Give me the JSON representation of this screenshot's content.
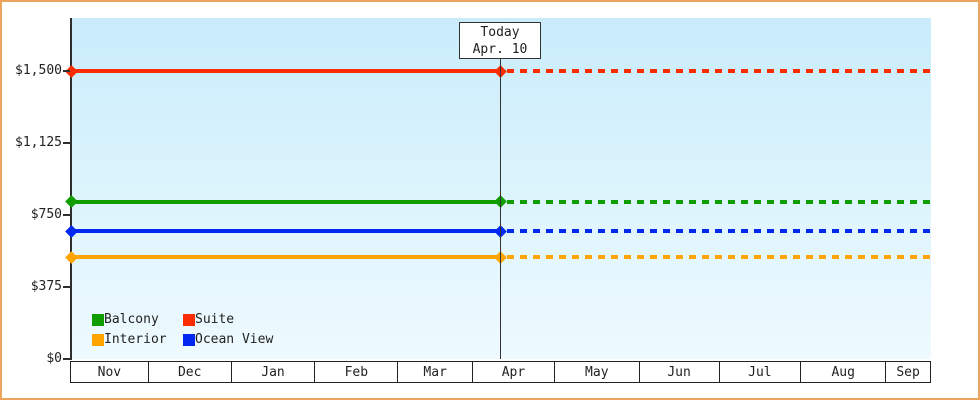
{
  "chart_data": {
    "type": "line",
    "title": "",
    "xlabel": "",
    "ylabel": "",
    "x_axis": {
      "months": [
        "Nov",
        "Dec",
        "Jan",
        "Feb",
        "Mar",
        "Apr",
        "May",
        "Jun",
        "Jul",
        "Aug",
        "Sep"
      ]
    },
    "y_axis": {
      "min": 0,
      "max": 1500,
      "ticks": [
        {
          "label": "$0",
          "value": 0
        },
        {
          "label": "$375",
          "value": 375
        },
        {
          "label": "$750",
          "value": 750
        },
        {
          "label": "$1,125",
          "value": 1125
        },
        {
          "label": "$1,500",
          "value": 1500
        }
      ]
    },
    "today": {
      "line1": "Today",
      "line2": "Apr. 10",
      "month": "Apr",
      "day": 10
    },
    "series": [
      {
        "name": "Suite",
        "color": "#fb2d00",
        "value": 1500,
        "style": "solid-then-dotted-after-today"
      },
      {
        "name": "Balcony",
        "color": "#0f9d00",
        "value": 820,
        "style": "solid-then-dotted-after-today"
      },
      {
        "name": "Ocean View",
        "color": "#0128f0",
        "value": 665,
        "style": "solid-then-dotted-after-today"
      },
      {
        "name": "Interior",
        "color": "#ffa400",
        "value": 529,
        "style": "solid-then-dotted-after-today"
      }
    ],
    "legend": {
      "position": "bottom-left",
      "grid": [
        [
          "Balcony",
          "Suite"
        ],
        [
          "Interior",
          "Ocean View"
        ]
      ]
    },
    "grid_lines": false
  },
  "colors": {
    "frame_border": "#eba55e",
    "axis": "#2e2e2e",
    "plot_gradient_top": "#c9ecfb",
    "plot_gradient_bottom": "#eefaff",
    "text": "#222222"
  }
}
